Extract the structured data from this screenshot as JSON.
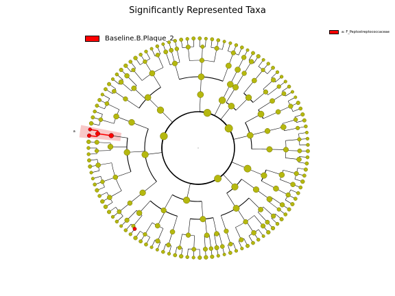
{
  "title": "Significantly Represented Taxa",
  "legend": {
    "label": "Baseline.B.Plaque_2",
    "color": "#ff0000"
  },
  "clade_legend": {
    "label": "a: F_Peptostreptococcaceae",
    "color": "#ff0000"
  },
  "highlight_marker": "a",
  "colors": {
    "node": "#b5b80f",
    "node_stroke": "#707000",
    "highlight": "#ff0000",
    "shade": "#f4a3a3"
  },
  "chart_data": {
    "type": "cladogram",
    "title": "Significantly Represented Taxa",
    "legend_entries": [
      "Baseline.B.Plaque_2"
    ],
    "clade_labels": [
      "a: F_Peptostreptococcaceae"
    ],
    "highlighted_clade": "F_Peptostreptococcaceae",
    "levels": 6
  }
}
